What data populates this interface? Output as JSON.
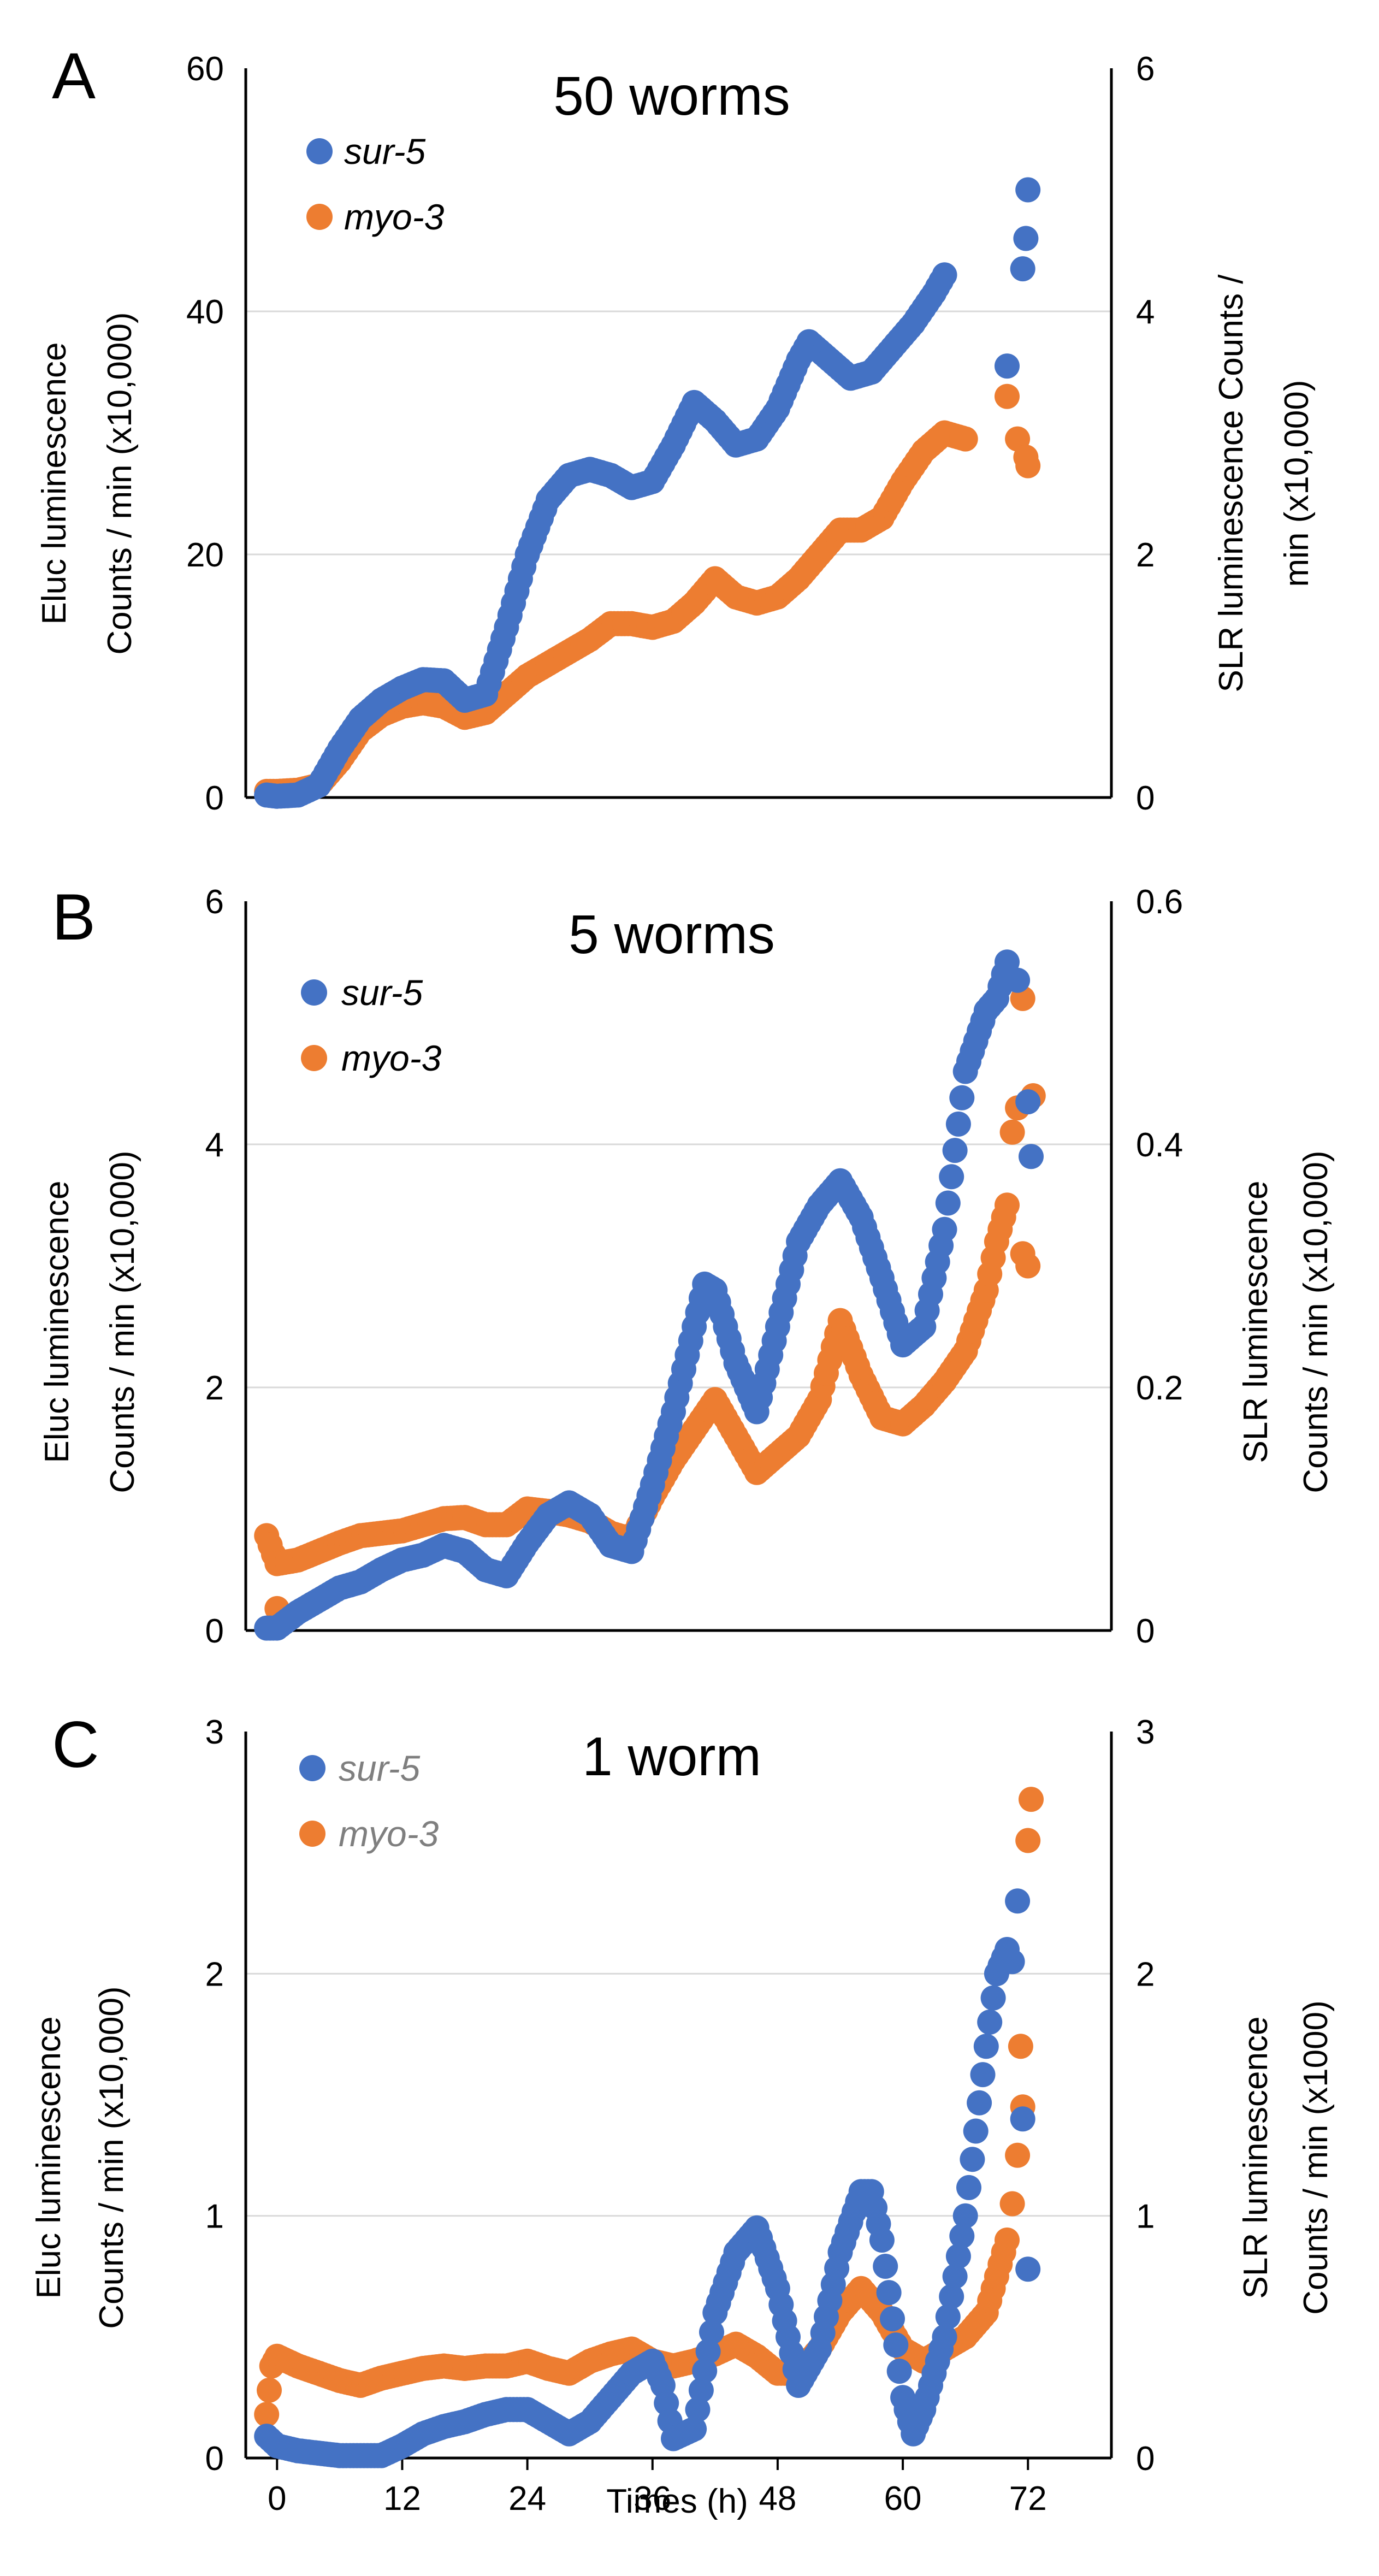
{
  "chart_data": [
    {
      "type": "scatter",
      "panel": "A",
      "title": "50 worms",
      "xlabel": "",
      "ylabel_left": [
        "Eluc luminescence",
        "Counts / min (x10,000)"
      ],
      "ylabel_right": [
        "SLR luminescence Counts /",
        "min (x10,000)"
      ],
      "xlim": [
        -3,
        80
      ],
      "ylim_left": [
        0,
        60
      ],
      "ylim_right": [
        0,
        6
      ],
      "left_ticks": [
        "0",
        "20",
        "40",
        "60"
      ],
      "right_ticks": [
        "0",
        "2",
        "4",
        "6"
      ],
      "legend_grey": false,
      "series": [
        {
          "name": "sur-5",
          "color": "#4472c4",
          "knots": [
            [
              -1,
              0.2
            ],
            [
              0,
              0.1
            ],
            [
              2,
              0.2
            ],
            [
              4,
              1
            ],
            [
              6,
              4
            ],
            [
              8,
              6.5
            ],
            [
              10,
              8
            ],
            [
              12,
              9
            ],
            [
              14,
              9.7
            ],
            [
              16,
              9.6
            ],
            [
              18,
              8
            ],
            [
              20,
              8.5
            ],
            [
              22,
              14
            ],
            [
              24,
              20
            ],
            [
              26,
              24.5
            ],
            [
              28,
              26.5
            ],
            [
              30,
              27
            ],
            [
              32,
              26.5
            ],
            [
              34,
              25.5
            ],
            [
              36,
              26
            ],
            [
              38,
              29
            ],
            [
              40,
              32.5
            ],
            [
              42,
              31
            ],
            [
              44,
              29
            ],
            [
              46,
              29.5
            ],
            [
              48,
              32
            ],
            [
              50,
              36
            ],
            [
              51,
              37.5
            ],
            [
              53,
              36
            ],
            [
              55,
              34.5
            ],
            [
              57,
              35
            ],
            [
              59,
              37
            ],
            [
              61,
              39
            ],
            [
              63,
              41.5
            ],
            [
              64,
              43
            ]
          ],
          "extra_points": [
            [
              70,
              35.5
            ],
            [
              71.5,
              43.5
            ],
            [
              71.8,
              46
            ],
            [
              72,
              50
            ]
          ]
        },
        {
          "name": "myo-3",
          "color": "#ed7d31",
          "knots": [
            [
              -1,
              0.5
            ],
            [
              0,
              0.5
            ],
            [
              2,
              0.6
            ],
            [
              4,
              1
            ],
            [
              6,
              3
            ],
            [
              8,
              5.5
            ],
            [
              10,
              6.8
            ],
            [
              12,
              7.5
            ],
            [
              14,
              7.8
            ],
            [
              16,
              7.5
            ],
            [
              18,
              6.6
            ],
            [
              20,
              7
            ],
            [
              22,
              8.5
            ],
            [
              24,
              10
            ],
            [
              26,
              11
            ],
            [
              28,
              12
            ],
            [
              30,
              13
            ],
            [
              32,
              14.3
            ],
            [
              34,
              14.3
            ],
            [
              36,
              14
            ],
            [
              38,
              14.5
            ],
            [
              40,
              16
            ],
            [
              42,
              18
            ],
            [
              44,
              16.5
            ],
            [
              46,
              16
            ],
            [
              48,
              16.5
            ],
            [
              50,
              18
            ],
            [
              52,
              20
            ],
            [
              54,
              22
            ],
            [
              56,
              22
            ],
            [
              58,
              23
            ],
            [
              60,
              26
            ],
            [
              62,
              28.5
            ],
            [
              64,
              30
            ],
            [
              66,
              29.5
            ]
          ],
          "extra_points": [
            [
              70,
              33
            ],
            [
              71,
              29.5
            ],
            [
              71.8,
              28
            ],
            [
              72,
              27.3
            ]
          ]
        }
      ]
    },
    {
      "type": "scatter",
      "panel": "B",
      "title": "5 worms",
      "xlabel": "",
      "ylabel_left": [
        "Eluc luminescence",
        "Counts / min (x10,000)"
      ],
      "ylabel_right": [
        "SLR luminescence",
        "Counts / min (x10,000)"
      ],
      "xlim": [
        -3,
        80
      ],
      "ylim_left": [
        0,
        6
      ],
      "ylim_right": [
        0,
        0.6
      ],
      "left_ticks": [
        "0",
        "2",
        "4",
        "6"
      ],
      "right_ticks": [
        "0",
        "0.2",
        "0.4",
        "0.6"
      ],
      "legend_grey": false,
      "series": [
        {
          "name": "sur-5",
          "color": "#4472c4",
          "knots": [
            [
              -1,
              0.02
            ],
            [
              0,
              0.02
            ],
            [
              2,
              0.15
            ],
            [
              4,
              0.25
            ],
            [
              6,
              0.35
            ],
            [
              8,
              0.4
            ],
            [
              10,
              0.5
            ],
            [
              12,
              0.58
            ],
            [
              14,
              0.62
            ],
            [
              16,
              0.7
            ],
            [
              18,
              0.65
            ],
            [
              20,
              0.5
            ],
            [
              22,
              0.45
            ],
            [
              24,
              0.72
            ],
            [
              26,
              0.95
            ],
            [
              28,
              1.05
            ],
            [
              30,
              0.95
            ],
            [
              32,
              0.7
            ],
            [
              34,
              0.65
            ],
            [
              36,
              1.2
            ],
            [
              38,
              1.8
            ],
            [
              40,
              2.5
            ],
            [
              41,
              2.85
            ],
            [
              42,
              2.8
            ],
            [
              44,
              2.2
            ],
            [
              46,
              1.8
            ],
            [
              48,
              2.5
            ],
            [
              50,
              3.2
            ],
            [
              52,
              3.5
            ],
            [
              54,
              3.7
            ],
            [
              56,
              3.4
            ],
            [
              58,
              2.9
            ],
            [
              60,
              2.35
            ],
            [
              62,
              2.5
            ],
            [
              64,
              3.3
            ],
            [
              66,
              4.6
            ],
            [
              68,
              5.1
            ],
            [
              69,
              5.2
            ],
            [
              70,
              5.5
            ]
          ],
          "extra_points": [
            [
              71,
              5.35
            ],
            [
              72,
              4.35
            ],
            [
              72.3,
              3.9
            ]
          ]
        },
        {
          "name": "myo-3",
          "color": "#ed7d31",
          "knots": [
            [
              -1,
              0.78
            ],
            [
              0,
              0.55
            ],
            [
              2,
              0.58
            ],
            [
              4,
              0.65
            ],
            [
              6,
              0.72
            ],
            [
              8,
              0.78
            ],
            [
              10,
              0.8
            ],
            [
              12,
              0.82
            ],
            [
              14,
              0.87
            ],
            [
              16,
              0.92
            ],
            [
              18,
              0.93
            ],
            [
              20,
              0.87
            ],
            [
              22,
              0.87
            ],
            [
              24,
              1
            ],
            [
              26,
              0.98
            ],
            [
              28,
              0.95
            ],
            [
              30,
              0.9
            ],
            [
              32,
              0.8
            ],
            [
              34,
              0.75
            ],
            [
              36,
              1.1
            ],
            [
              38,
              1.4
            ],
            [
              40,
              1.65
            ],
            [
              42,
              1.9
            ],
            [
              44,
              1.6
            ],
            [
              46,
              1.3
            ],
            [
              48,
              1.45
            ],
            [
              50,
              1.6
            ],
            [
              52,
              1.9
            ],
            [
              54,
              2.55
            ],
            [
              56,
              2.1
            ],
            [
              58,
              1.75
            ],
            [
              60,
              1.7
            ],
            [
              62,
              1.85
            ],
            [
              64,
              2.05
            ],
            [
              66,
              2.3
            ],
            [
              68,
              2.8
            ],
            [
              69,
              3.2
            ],
            [
              70,
              3.5
            ]
          ],
          "extra_points": [
            [
              0,
              0.18
            ],
            [
              70.5,
              4.1
            ],
            [
              71,
              4.3
            ],
            [
              71.5,
              3.1
            ],
            [
              72,
              3.0
            ],
            [
              71.5,
              5.2
            ],
            [
              72.5,
              4.4
            ]
          ]
        }
      ]
    },
    {
      "type": "scatter",
      "panel": "C",
      "title": "1 worm",
      "xlabel": "Times (h)",
      "ylabel_left": [
        "Eluc luminescence",
        "Counts / min (x10,000)"
      ],
      "ylabel_right": [
        "SLR luminescence",
        "Counts / min (x1000)"
      ],
      "xlim": [
        -3,
        80
      ],
      "ylim_left": [
        0,
        3
      ],
      "ylim_right": [
        0,
        3
      ],
      "left_ticks": [
        "0",
        "1",
        "2",
        "3"
      ],
      "right_ticks": [
        "0",
        "1",
        "2",
        "3"
      ],
      "x_ticks": [
        "0",
        "12",
        "24",
        "36",
        "48",
        "60",
        "72"
      ],
      "x_tick_values": [
        0,
        12,
        24,
        36,
        48,
        60,
        72
      ],
      "legend_grey": true,
      "series": [
        {
          "name": "sur-5",
          "color": "#4472c4",
          "knots": [
            [
              -1,
              0.09
            ],
            [
              0,
              0.05
            ],
            [
              2,
              0.03
            ],
            [
              4,
              0.02
            ],
            [
              6,
              0.01
            ],
            [
              8,
              0.01
            ],
            [
              10,
              0.01
            ],
            [
              12,
              0.05
            ],
            [
              14,
              0.1
            ],
            [
              16,
              0.13
            ],
            [
              18,
              0.15
            ],
            [
              20,
              0.18
            ],
            [
              22,
              0.2
            ],
            [
              24,
              0.2
            ],
            [
              26,
              0.15
            ],
            [
              28,
              0.1
            ],
            [
              30,
              0.15
            ],
            [
              32,
              0.25
            ],
            [
              34,
              0.35
            ],
            [
              36,
              0.4
            ],
            [
              37,
              0.3
            ],
            [
              38,
              0.08
            ],
            [
              40,
              0.12
            ],
            [
              42,
              0.6
            ],
            [
              44,
              0.85
            ],
            [
              46,
              0.95
            ],
            [
              48,
              0.7
            ],
            [
              50,
              0.3
            ],
            [
              52,
              0.45
            ],
            [
              54,
              0.85
            ],
            [
              56,
              1.1
            ],
            [
              57,
              1.1
            ],
            [
              58,
              0.9
            ],
            [
              60,
              0.25
            ],
            [
              61,
              0.1
            ],
            [
              62,
              0.2
            ],
            [
              64,
              0.5
            ],
            [
              66,
              1.0
            ],
            [
              68,
              1.7
            ],
            [
              69,
              2.0
            ],
            [
              70,
              2.1
            ]
          ],
          "extra_points": [
            [
              70.5,
              2.05
            ],
            [
              71,
              2.3
            ],
            [
              71.5,
              1.4
            ],
            [
              72,
              0.78
            ]
          ]
        },
        {
          "name": "myo-3",
          "color": "#ed7d31",
          "knots": [
            [
              -1,
              0.18
            ],
            [
              -0.5,
              0.38
            ],
            [
              0,
              0.42
            ],
            [
              2,
              0.38
            ],
            [
              4,
              0.35
            ],
            [
              6,
              0.32
            ],
            [
              8,
              0.3
            ],
            [
              10,
              0.33
            ],
            [
              12,
              0.35
            ],
            [
              14,
              0.37
            ],
            [
              16,
              0.38
            ],
            [
              18,
              0.37
            ],
            [
              20,
              0.38
            ],
            [
              22,
              0.38
            ],
            [
              24,
              0.4
            ],
            [
              26,
              0.37
            ],
            [
              28,
              0.35
            ],
            [
              30,
              0.4
            ],
            [
              32,
              0.43
            ],
            [
              34,
              0.45
            ],
            [
              36,
              0.4
            ],
            [
              38,
              0.38
            ],
            [
              40,
              0.4
            ],
            [
              42,
              0.43
            ],
            [
              44,
              0.47
            ],
            [
              46,
              0.42
            ],
            [
              48,
              0.35
            ],
            [
              50,
              0.35
            ],
            [
              52,
              0.45
            ],
            [
              54,
              0.6
            ],
            [
              56,
              0.7
            ],
            [
              58,
              0.6
            ],
            [
              60,
              0.45
            ],
            [
              62,
              0.4
            ],
            [
              64,
              0.45
            ],
            [
              66,
              0.5
            ],
            [
              68,
              0.6
            ],
            [
              69,
              0.75
            ],
            [
              70,
              0.9
            ]
          ],
          "extra_points": [
            [
              70.5,
              1.05
            ],
            [
              71,
              1.25
            ],
            [
              71.5,
              1.45
            ],
            [
              71.3,
              1.7
            ],
            [
              72,
              2.55
            ],
            [
              72.3,
              2.72
            ]
          ]
        }
      ]
    }
  ]
}
